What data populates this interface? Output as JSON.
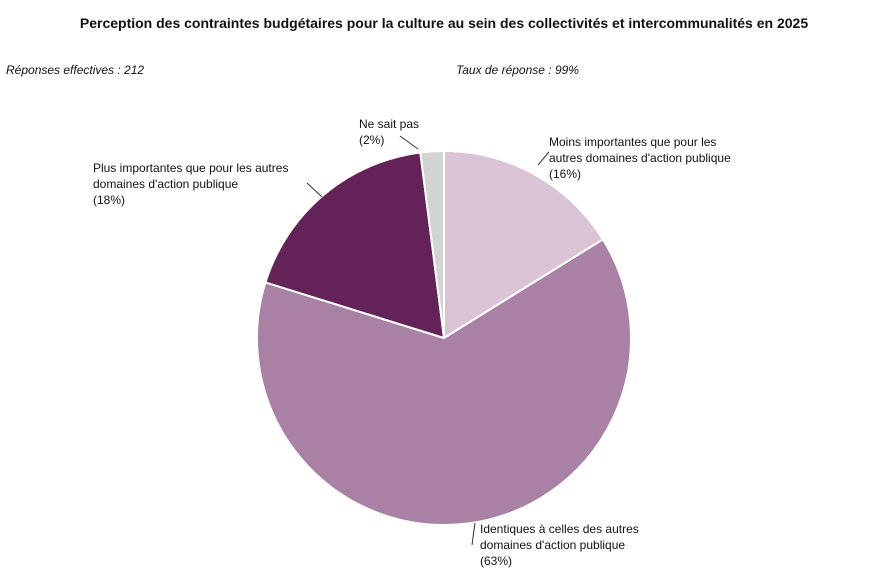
{
  "chart_data": {
    "type": "pie",
    "title": "Perception des contraintes budgétaires pour la culture au sein des collectivités et intercommunalités en 2025",
    "subtitle_left": "Réponses effectives : 212",
    "subtitle_right": "Taux de réponse : 99%",
    "start": "12 o'clock",
    "direction": "clockwise",
    "slices": [
      {
        "key": "moins",
        "value": 16,
        "percent_label": "(16%)",
        "label_lines": [
          "Moins importantes que pour les",
          "autres domaines d'action publique"
        ],
        "color": "#d9c3d5"
      },
      {
        "key": "identiques",
        "value": 63,
        "percent_label": "(63%)",
        "label_lines": [
          "Identiques à celles des autres",
          "domaines d'action publique"
        ],
        "color": "#a981a4"
      },
      {
        "key": "plus",
        "value": 18,
        "percent_label": "(18%)",
        "label_lines": [
          "Plus importantes que pour les autres",
          "domaines d'action publique"
        ],
        "color": "#632358"
      },
      {
        "key": "nsp",
        "value": 2,
        "percent_label": "(2%)",
        "label_lines": [
          "Ne sait pas"
        ],
        "color": "#d3d3d3"
      }
    ]
  }
}
